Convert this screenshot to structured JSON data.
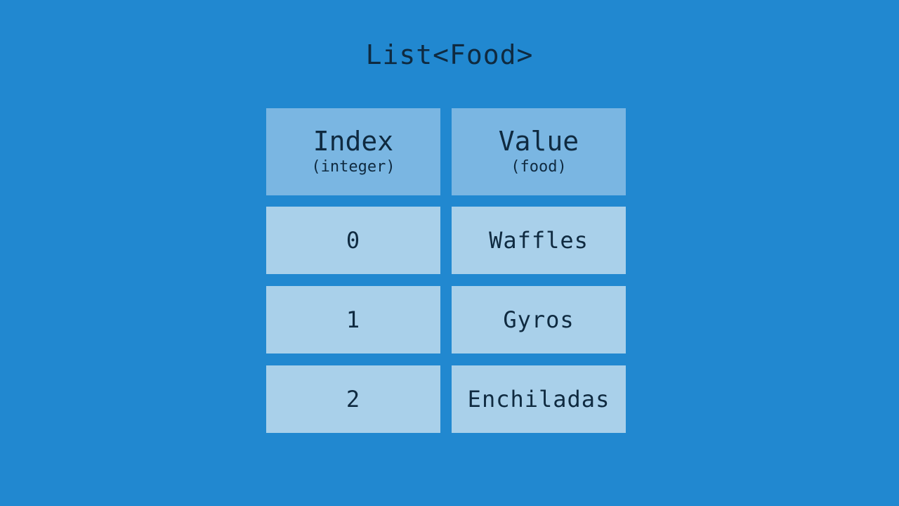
{
  "title": "List<Food>",
  "headers": [
    {
      "label": "Index",
      "type": "(integer)"
    },
    {
      "label": "Value",
      "type": "(food)"
    }
  ],
  "rows": [
    {
      "index": "0",
      "value": "Waffles"
    },
    {
      "index": "1",
      "value": "Gyros"
    },
    {
      "index": "2",
      "value": "Enchiladas"
    }
  ],
  "colors": {
    "background": "#2188d0",
    "header_cell": "#7ab6e2",
    "body_cell": "#a9d0ea",
    "text": "#0f2a40"
  }
}
